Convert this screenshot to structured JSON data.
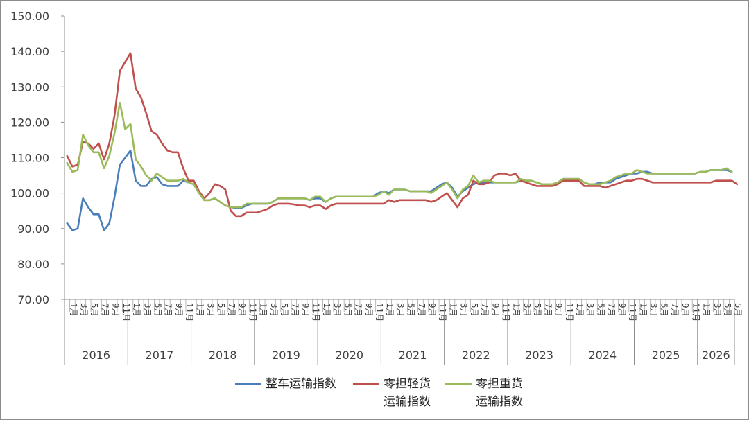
{
  "chart_data": {
    "type": "line",
    "title": "",
    "xlabel": "",
    "ylabel": "",
    "ylim": [
      70,
      150
    ],
    "yticks": [
      "70.00",
      "80.00",
      "90.00",
      "100.00",
      "110.00",
      "120.00",
      "130.00",
      "140.00",
      "150.00"
    ],
    "grid": false,
    "legend_position": "bottom",
    "years": [
      "2016",
      "2017",
      "2018",
      "2019",
      "2020",
      "2021",
      "2022",
      "2023",
      "2024",
      "2025",
      "2026"
    ],
    "month_tick_labels": [
      "1月",
      "3月",
      "5月",
      "7月",
      "9月",
      "11月"
    ],
    "final_tick_label": "5月",
    "x_start": "2016-01",
    "x_end": "2026-05",
    "series": [
      {
        "name": "整车运输指数",
        "color": "#4a7ebb",
        "values": [
          91.5,
          89.5,
          90,
          98.5,
          96,
          94,
          94,
          89.5,
          91.5,
          99,
          108,
          110,
          112,
          103.5,
          102,
          102,
          104,
          104.5,
          102.5,
          102,
          102,
          102,
          103.5,
          103,
          102.5,
          100,
          98,
          98,
          98.5,
          97.5,
          96.5,
          96,
          95.8,
          95.8,
          96.5,
          97,
          97,
          97,
          97,
          97.5,
          98.5,
          98.5,
          98.5,
          98.5,
          98.5,
          98.5,
          98,
          98.5,
          98.5,
          97.5,
          98.5,
          99,
          99,
          99,
          99,
          99,
          99,
          99,
          99,
          100,
          100.5,
          100,
          101,
          101,
          101,
          100.5,
          100.5,
          100.5,
          100.5,
          100.5,
          101.5,
          102.5,
          103,
          101.5,
          99,
          100.5,
          101.5,
          102.5,
          103,
          103,
          103,
          103,
          103,
          103,
          103,
          103,
          103.5,
          103.5,
          103.5,
          103,
          102.5,
          102.5,
          102.5,
          103,
          104,
          104,
          104,
          104,
          103,
          102.5,
          102.5,
          103,
          103,
          103,
          104,
          104.5,
          105,
          105.5,
          105.5,
          106,
          106,
          105.5,
          105.5,
          105.5,
          105.5,
          105.5,
          105.5,
          105.5,
          105.5,
          105.5,
          106,
          106,
          106.5,
          106.5,
          106.5,
          106.5,
          106
        ]
      },
      {
        "name": "零担轻货运输指数",
        "color": "#c0504d",
        "values": [
          110.5,
          107.5,
          108,
          114.5,
          114,
          112.5,
          114,
          109.5,
          114,
          122,
          134.5,
          137,
          139.5,
          129.5,
          127,
          122.5,
          117.5,
          116.5,
          114,
          112,
          111.5,
          111.5,
          107,
          103.5,
          103.5,
          100.5,
          98.5,
          100,
          102.5,
          102,
          101,
          95,
          93.5,
          93.5,
          94.5,
          94.5,
          94.5,
          95,
          95.5,
          96.5,
          97,
          97,
          97,
          96.8,
          96.5,
          96.5,
          96,
          96.5,
          96.5,
          95.5,
          96.5,
          97,
          97,
          97,
          97,
          97,
          97,
          97,
          97,
          97,
          97,
          98,
          97.5,
          98,
          98,
          98,
          98,
          98,
          98,
          97.5,
          98,
          99,
          100,
          98,
          96,
          98.5,
          99.5,
          103.5,
          102.5,
          102.5,
          103,
          105,
          105.5,
          105.5,
          105,
          105.5,
          103.5,
          103,
          102.5,
          102,
          102,
          102,
          102,
          102.5,
          103.5,
          103.5,
          103.5,
          103.5,
          102,
          102,
          102,
          102,
          101.5,
          102,
          102.5,
          103,
          103.5,
          103.5,
          104,
          104,
          103.5,
          103,
          103,
          103,
          103,
          103,
          103,
          103,
          103,
          103,
          103,
          103,
          103,
          103.5,
          103.5,
          103.5,
          103.5,
          102.5
        ]
      },
      {
        "name": "零担重货运输指数",
        "color": "#9bbb59",
        "values": [
          108.5,
          106,
          106.5,
          116.5,
          113.5,
          111.5,
          111.5,
          107,
          110.5,
          117,
          125.5,
          118,
          119.5,
          109.5,
          107.5,
          105,
          103.5,
          105.5,
          104.5,
          103.5,
          103.5,
          103.5,
          104,
          103,
          102.5,
          100,
          98,
          98,
          98.5,
          97.5,
          96.5,
          96,
          96,
          96,
          97,
          97,
          97,
          97,
          97,
          97.5,
          98.5,
          98.5,
          98.5,
          98.5,
          98.5,
          98.5,
          98,
          99,
          99,
          97.5,
          98.5,
          99,
          99,
          99,
          99,
          99,
          99,
          99,
          99,
          99.5,
          100.5,
          99.5,
          101,
          101,
          101,
          100.5,
          100.5,
          100.5,
          100.5,
          100,
          101,
          102,
          103,
          101,
          98.5,
          101,
          102,
          105,
          103,
          103.5,
          103.5,
          103,
          103,
          103,
          103,
          103,
          104,
          103.5,
          103.5,
          103,
          102.5,
          102.5,
          102.5,
          103,
          104,
          104,
          104,
          104,
          103,
          102.5,
          102.5,
          102.5,
          103,
          103.5,
          104.5,
          105,
          105.5,
          105.5,
          106.5,
          106,
          105.5,
          105.5,
          105.5,
          105.5,
          105.5,
          105.5,
          105.5,
          105.5,
          105.5,
          105.5,
          106,
          106,
          106.5,
          106.5,
          106.5,
          107,
          106
        ]
      }
    ]
  }
}
